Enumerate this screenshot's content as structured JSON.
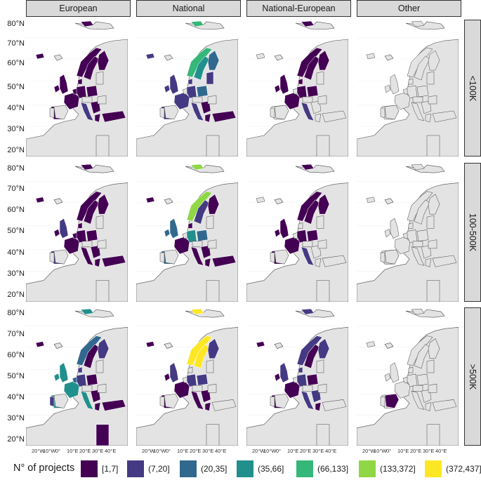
{
  "columns": [
    "European",
    "National",
    "National-European",
    "Other"
  ],
  "rows": [
    "<100K",
    "100-500K",
    ">500K"
  ],
  "y_ticks": [
    "80°N",
    "70°N",
    "60°N",
    "50°N",
    "40°N",
    "30°N",
    "20°N"
  ],
  "x_ticks": [
    "20°W",
    "10°W",
    "0°",
    "10°E",
    "20°E",
    "30°E",
    "40°E"
  ],
  "legend": {
    "title": "N° of projects",
    "items": [
      {
        "label": "[1,7]",
        "color": "#440154"
      },
      {
        "label": "(7,20]",
        "color": "#443A83"
      },
      {
        "label": "(20,35]",
        "color": "#31688E"
      },
      {
        "label": "(35,66]",
        "color": "#21908C"
      },
      {
        "label": "(66,133]",
        "color": "#35B779"
      },
      {
        "label": "(133,372]",
        "color": "#8FD744"
      },
      {
        "label": "(372,437]",
        "color": "#FDE725"
      }
    ]
  },
  "colors": {
    "land": "#e3e3e3",
    "border": "#4a4a4a",
    "sea": "#ffffff"
  }
}
